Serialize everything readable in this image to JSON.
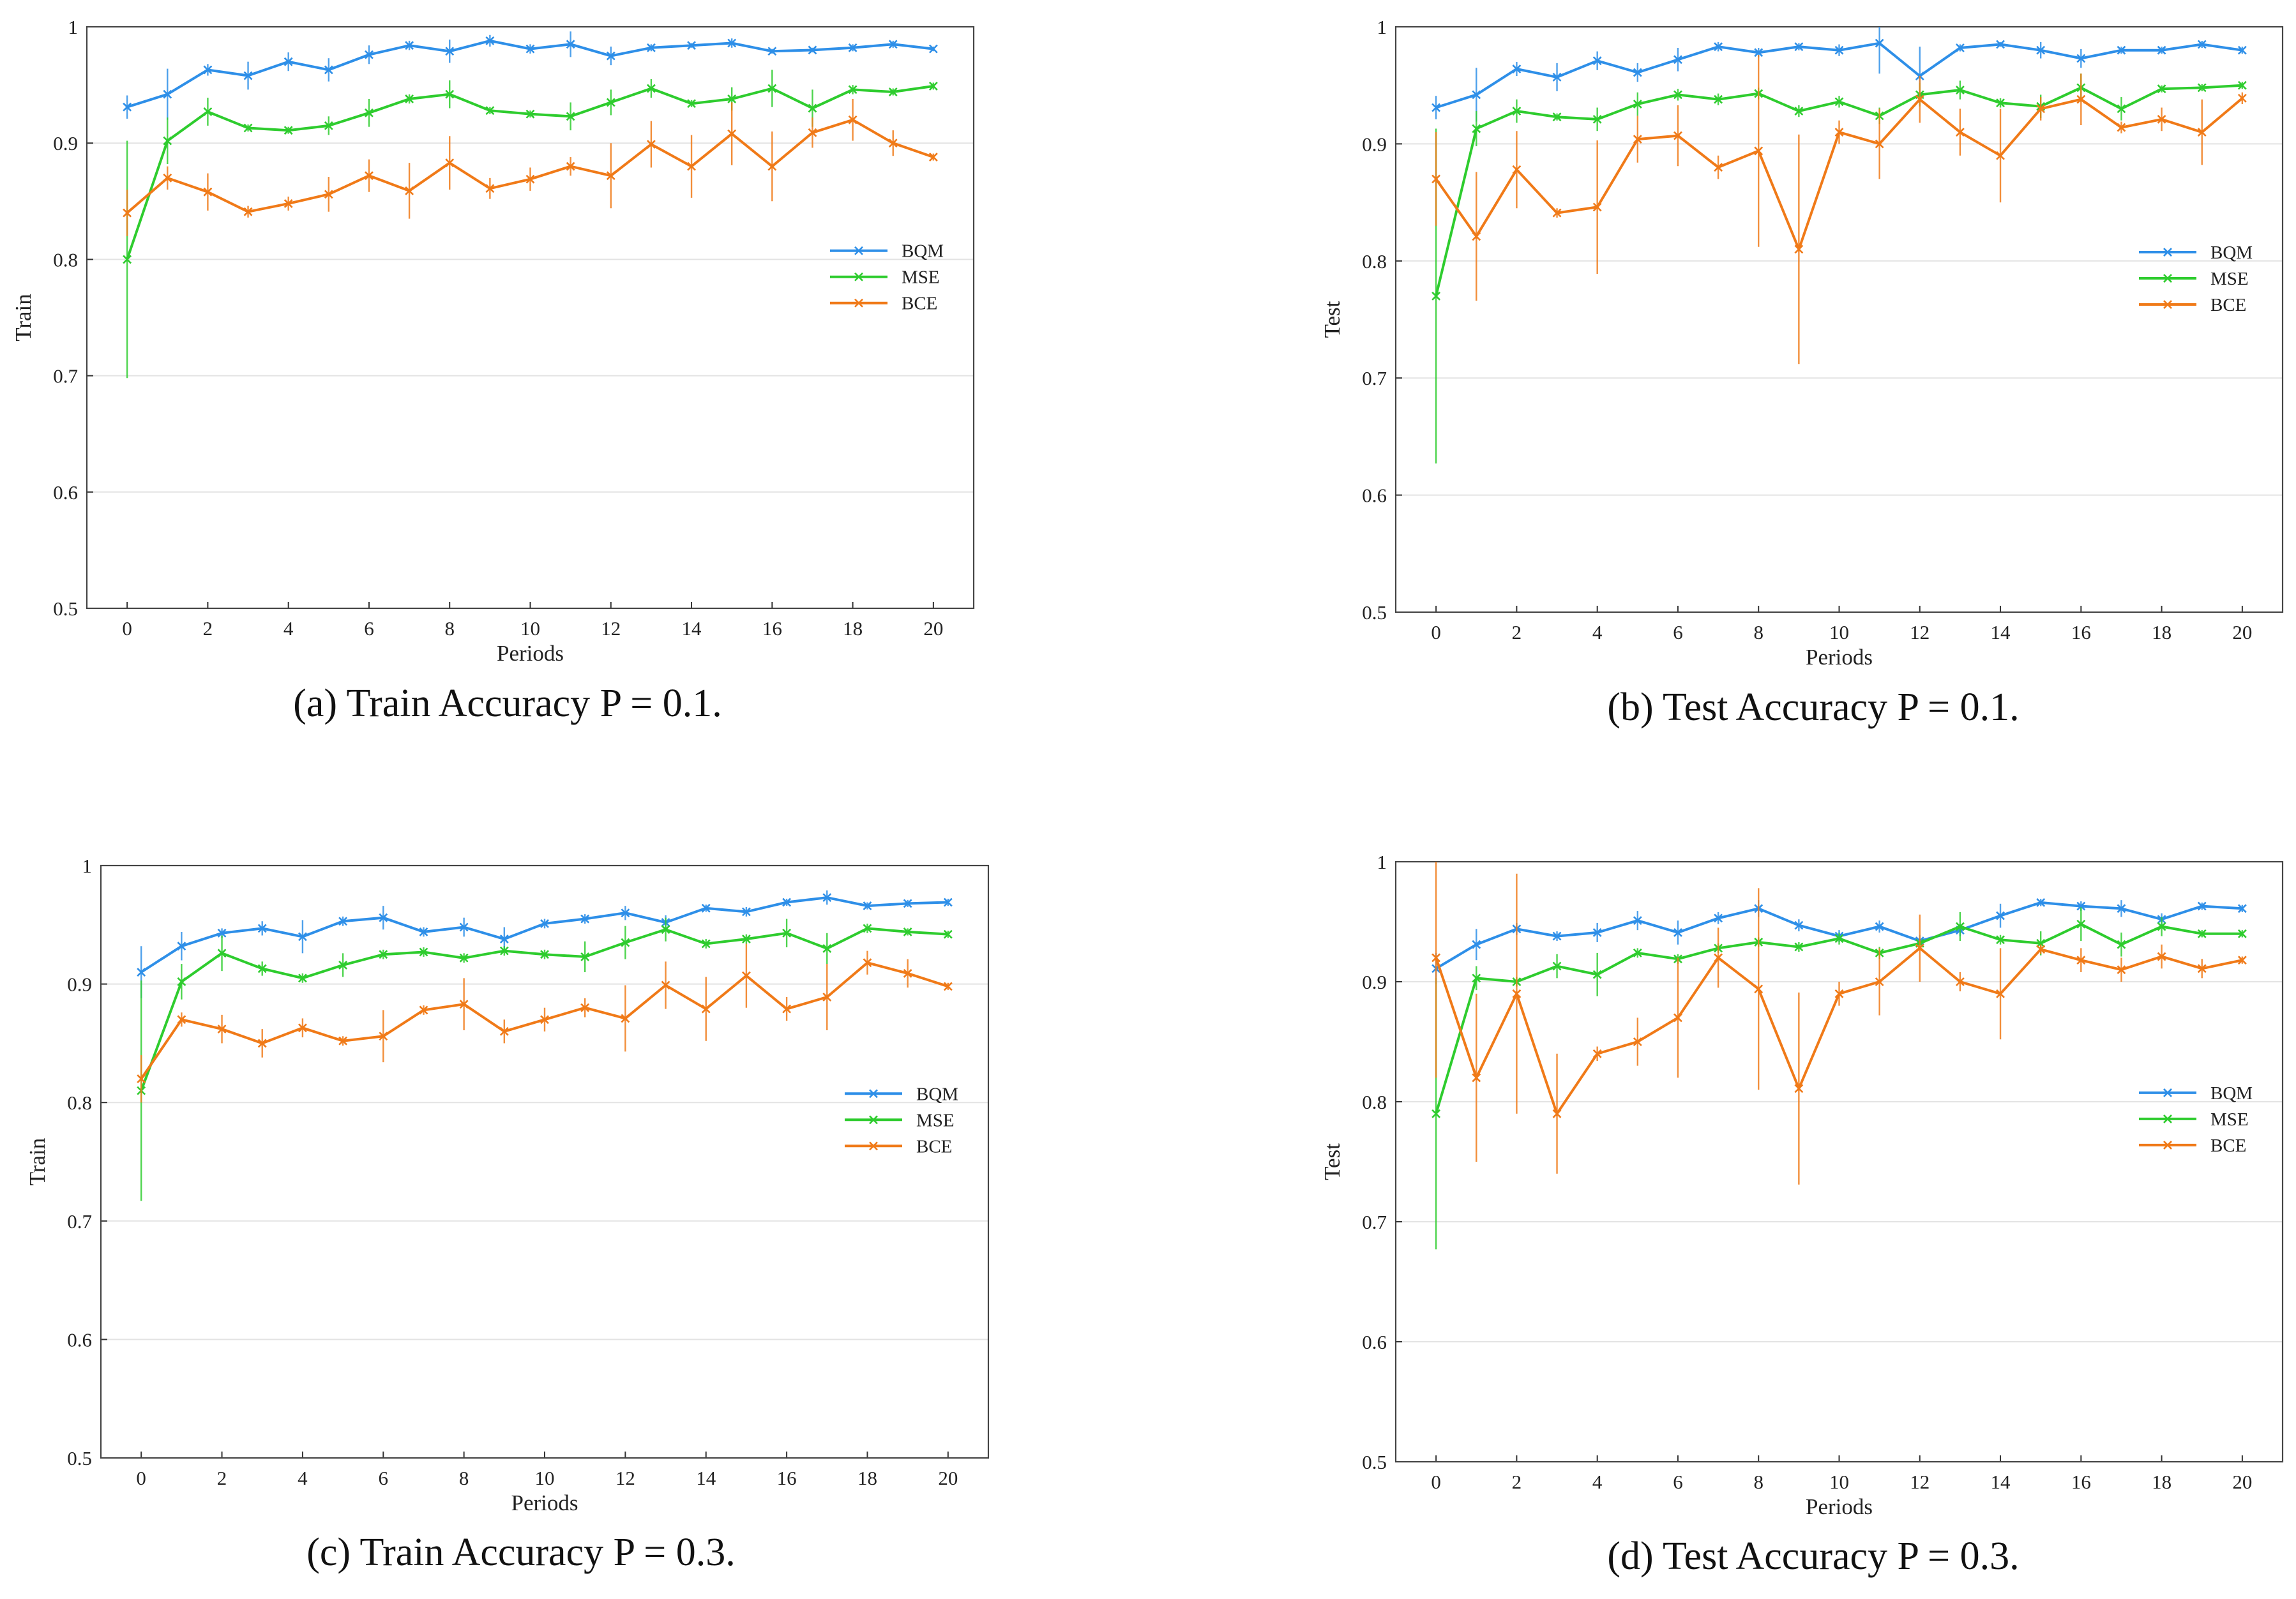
{
  "chart_data": [
    {
      "type": "line",
      "panel_id": "a",
      "caption_tag": "(a)",
      "caption_text": "Train Accuracy P = 0.1.",
      "ylabel": "Train",
      "xlabel": "Periods",
      "ylim": [
        0.5,
        1.0
      ],
      "xlim": [
        -1,
        21
      ],
      "yticks": [
        "0.5",
        "0.6",
        "0.7",
        "0.8",
        "0.9",
        "1"
      ],
      "xticks": [
        "0",
        "2",
        "4",
        "6",
        "8",
        "10",
        "12",
        "14",
        "16",
        "18",
        "20"
      ],
      "legend_position": "center-right",
      "x": [
        0,
        1,
        2,
        3,
        4,
        5,
        6,
        7,
        8,
        9,
        10,
        11,
        12,
        13,
        14,
        15,
        16,
        17,
        18,
        19,
        20
      ],
      "series": [
        {
          "name": "BQM",
          "color": "#2e8fe8",
          "values": [
            0.931,
            0.942,
            0.963,
            0.958,
            0.97,
            0.963,
            0.976,
            0.984,
            0.979,
            0.988,
            0.981,
            0.985,
            0.975,
            0.982,
            0.984,
            0.986,
            0.979,
            0.98,
            0.982,
            0.985,
            0.981
          ],
          "errors": [
            0.01,
            0.022,
            0.005,
            0.012,
            0.008,
            0.01,
            0.008,
            0.004,
            0.01,
            0.005,
            0.004,
            0.011,
            0.008,
            0.003,
            0.002,
            0.004,
            0.002,
            0.002,
            0.003,
            0.003,
            0.002
          ]
        },
        {
          "name": "MSE",
          "color": "#2ecc2e",
          "values": [
            0.8,
            0.902,
            0.927,
            0.913,
            0.911,
            0.915,
            0.926,
            0.938,
            0.942,
            0.928,
            0.925,
            0.923,
            0.935,
            0.947,
            0.934,
            0.938,
            0.947,
            0.93,
            0.946,
            0.944,
            0.949
          ],
          "errors": [
            0.102,
            0.02,
            0.012,
            0.003,
            0.003,
            0.008,
            0.012,
            0.004,
            0.012,
            0.003,
            0.003,
            0.012,
            0.011,
            0.008,
            0.003,
            0.01,
            0.016,
            0.016,
            0.004,
            0.003,
            0.003
          ]
        },
        {
          "name": "BCE",
          "color": "#f07a18",
          "values": [
            0.84,
            0.87,
            0.858,
            0.841,
            0.848,
            0.856,
            0.872,
            0.859,
            0.883,
            0.861,
            0.869,
            0.88,
            0.872,
            0.899,
            0.88,
            0.908,
            0.88,
            0.909,
            0.92,
            0.9,
            0.888
          ],
          "errors": [
            0.02,
            0.01,
            0.016,
            0.005,
            0.006,
            0.015,
            0.014,
            0.024,
            0.023,
            0.009,
            0.01,
            0.008,
            0.028,
            0.02,
            0.027,
            0.027,
            0.03,
            0.013,
            0.018,
            0.011,
            0.003
          ]
        }
      ]
    },
    {
      "type": "line",
      "panel_id": "b",
      "caption_tag": "(b)",
      "caption_text": "Test Accuracy P = 0.1.",
      "ylabel": "Test",
      "xlabel": "Periods",
      "ylim": [
        0.5,
        1.0
      ],
      "xlim": [
        -1,
        21
      ],
      "yticks": [
        "0.5",
        "0.6",
        "0.7",
        "0.8",
        "0.9",
        "1"
      ],
      "xticks": [
        "0",
        "2",
        "4",
        "6",
        "8",
        "10",
        "12",
        "14",
        "16",
        "18",
        "20"
      ],
      "legend_position": "center-right",
      "x": [
        0,
        1,
        2,
        3,
        4,
        5,
        6,
        7,
        8,
        9,
        10,
        11,
        12,
        13,
        14,
        15,
        16,
        17,
        18,
        19,
        20
      ],
      "series": [
        {
          "name": "BQM",
          "color": "#2e8fe8",
          "values": [
            0.931,
            0.942,
            0.964,
            0.957,
            0.971,
            0.961,
            0.972,
            0.983,
            0.978,
            0.983,
            0.98,
            0.986,
            0.958,
            0.982,
            0.985,
            0.98,
            0.973,
            0.98,
            0.98,
            0.985,
            0.98
          ],
          "errors": [
            0.01,
            0.023,
            0.006,
            0.012,
            0.008,
            0.008,
            0.01,
            0.004,
            0.004,
            0.003,
            0.005,
            0.026,
            0.025,
            0.003,
            0.002,
            0.007,
            0.008,
            0.003,
            0.003,
            0.003,
            0.003
          ]
        },
        {
          "name": "MSE",
          "color": "#2ecc2e",
          "values": [
            0.77,
            0.913,
            0.928,
            0.923,
            0.921,
            0.934,
            0.942,
            0.938,
            0.943,
            0.928,
            0.936,
            0.924,
            0.942,
            0.946,
            0.935,
            0.932,
            0.948,
            0.93,
            0.947,
            0.948,
            0.95
          ],
          "errors": [
            0.143,
            0.015,
            0.01,
            0.003,
            0.01,
            0.01,
            0.005,
            0.005,
            0.005,
            0.005,
            0.005,
            0.007,
            0.01,
            0.008,
            0.004,
            0.01,
            0.012,
            0.01,
            0.003,
            0.003,
            0.003
          ]
        },
        {
          "name": "BCE",
          "color": "#f07a18",
          "values": [
            0.87,
            0.821,
            0.878,
            0.841,
            0.846,
            0.904,
            0.907,
            0.88,
            0.894,
            0.81,
            0.91,
            0.9,
            0.938,
            0.91,
            0.89,
            0.93,
            0.938,
            0.914,
            0.921,
            0.91,
            0.939
          ],
          "errors": [
            0.04,
            0.055,
            0.033,
            0.004,
            0.057,
            0.02,
            0.026,
            0.01,
            0.082,
            0.098,
            0.01,
            0.03,
            0.02,
            0.02,
            0.04,
            0.01,
            0.022,
            0.005,
            0.01,
            0.028,
            0.005
          ]
        }
      ]
    },
    {
      "type": "line",
      "panel_id": "c",
      "caption_tag": "(c)",
      "caption_text": "Train Accuracy P = 0.3.",
      "ylabel": "Train",
      "xlabel": "Periods",
      "ylim": [
        0.5,
        1.0
      ],
      "xlim": [
        -1,
        21
      ],
      "yticks": [
        "0.5",
        "0.6",
        "0.7",
        "0.8",
        "0.9",
        "1"
      ],
      "xticks": [
        "0",
        "2",
        "4",
        "6",
        "8",
        "10",
        "12",
        "14",
        "16",
        "18",
        "20"
      ],
      "legend_position": "center-right",
      "x": [
        0,
        1,
        2,
        3,
        4,
        5,
        6,
        7,
        8,
        9,
        10,
        11,
        12,
        13,
        14,
        15,
        16,
        17,
        18,
        19,
        20
      ],
      "series": [
        {
          "name": "BQM",
          "color": "#2e8fe8",
          "values": [
            0.91,
            0.932,
            0.943,
            0.947,
            0.94,
            0.953,
            0.956,
            0.944,
            0.948,
            0.938,
            0.951,
            0.955,
            0.96,
            0.952,
            0.964,
            0.961,
            0.969,
            0.973,
            0.966,
            0.968,
            0.969
          ],
          "errors": [
            0.022,
            0.012,
            0.004,
            0.006,
            0.014,
            0.004,
            0.01,
            0.004,
            0.008,
            0.01,
            0.004,
            0.004,
            0.006,
            0.006,
            0.003,
            0.004,
            0.003,
            0.006,
            0.003,
            0.003,
            0.003
          ]
        },
        {
          "name": "MSE",
          "color": "#2ecc2e",
          "values": [
            0.81,
            0.902,
            0.926,
            0.913,
            0.905,
            0.916,
            0.925,
            0.927,
            0.922,
            0.928,
            0.925,
            0.923,
            0.935,
            0.946,
            0.934,
            0.938,
            0.943,
            0.93,
            0.947,
            0.944,
            0.942
          ],
          "errors": [
            0.093,
            0.015,
            0.015,
            0.006,
            0.004,
            0.01,
            0.004,
            0.004,
            0.004,
            0.004,
            0.004,
            0.013,
            0.014,
            0.01,
            0.004,
            0.004,
            0.012,
            0.013,
            0.004,
            0.003,
            0.003
          ]
        },
        {
          "name": "BCE",
          "color": "#f07a18",
          "values": [
            0.82,
            0.87,
            0.862,
            0.85,
            0.863,
            0.852,
            0.856,
            0.878,
            0.883,
            0.86,
            0.87,
            0.88,
            0.871,
            0.899,
            0.879,
            0.907,
            0.879,
            0.889,
            0.918,
            0.909,
            0.898
          ],
          "errors": [
            0.02,
            0.006,
            0.012,
            0.012,
            0.008,
            0.004,
            0.022,
            0.004,
            0.022,
            0.01,
            0.01,
            0.008,
            0.028,
            0.02,
            0.027,
            0.027,
            0.01,
            0.028,
            0.01,
            0.012,
            0.003
          ]
        }
      ]
    },
    {
      "type": "line",
      "panel_id": "d",
      "caption_tag": "(d)",
      "caption_text": "Test Accuracy P = 0.3.",
      "ylabel": "Test",
      "xlabel": "Periods",
      "ylim": [
        0.5,
        1.0
      ],
      "xlim": [
        -1,
        21
      ],
      "yticks": [
        "0.5",
        "0.6",
        "0.7",
        "0.8",
        "0.9",
        "1"
      ],
      "xticks": [
        "0",
        "2",
        "4",
        "6",
        "8",
        "10",
        "12",
        "14",
        "16",
        "18",
        "20"
      ],
      "legend_position": "center-right",
      "x": [
        0,
        1,
        2,
        3,
        4,
        5,
        6,
        7,
        8,
        9,
        10,
        11,
        12,
        13,
        14,
        15,
        16,
        17,
        18,
        19,
        20
      ],
      "series": [
        {
          "name": "BQM",
          "color": "#2e8fe8",
          "values": [
            0.911,
            0.931,
            0.944,
            0.938,
            0.941,
            0.951,
            0.941,
            0.953,
            0.961,
            0.947,
            0.938,
            0.946,
            0.934,
            0.943,
            0.955,
            0.966,
            0.963,
            0.961,
            0.952,
            0.963,
            0.961
          ],
          "errors": [
            0.013,
            0.013,
            0.005,
            0.004,
            0.008,
            0.008,
            0.01,
            0.005,
            0.007,
            0.005,
            0.005,
            0.005,
            0.005,
            0.005,
            0.01,
            0.003,
            0.004,
            0.007,
            0.005,
            0.003,
            0.003
          ]
        },
        {
          "name": "MSE",
          "color": "#2ecc2e",
          "values": [
            0.79,
            0.903,
            0.9,
            0.913,
            0.906,
            0.924,
            0.919,
            0.928,
            0.933,
            0.929,
            0.936,
            0.924,
            0.932,
            0.946,
            0.935,
            0.932,
            0.948,
            0.931,
            0.946,
            0.94,
            0.94
          ],
          "errors": [
            0.113,
            0.01,
            0.004,
            0.01,
            0.018,
            0.004,
            0.004,
            0.004,
            0.004,
            0.004,
            0.005,
            0.005,
            0.004,
            0.012,
            0.004,
            0.01,
            0.014,
            0.01,
            0.008,
            0.003,
            0.003
          ]
        },
        {
          "name": "BCE",
          "color": "#f07a18",
          "values": [
            0.92,
            0.82,
            0.89,
            0.79,
            0.84,
            0.85,
            0.87,
            0.92,
            0.894,
            0.811,
            0.89,
            0.9,
            0.928,
            0.9,
            0.89,
            0.927,
            0.918,
            0.91,
            0.921,
            0.911,
            0.918
          ],
          "errors": [
            0.1,
            0.07,
            0.1,
            0.05,
            0.006,
            0.02,
            0.05,
            0.025,
            0.084,
            0.08,
            0.01,
            0.028,
            0.028,
            0.008,
            0.038,
            0.004,
            0.01,
            0.01,
            0.01,
            0.008,
            0.003
          ]
        }
      ]
    }
  ]
}
